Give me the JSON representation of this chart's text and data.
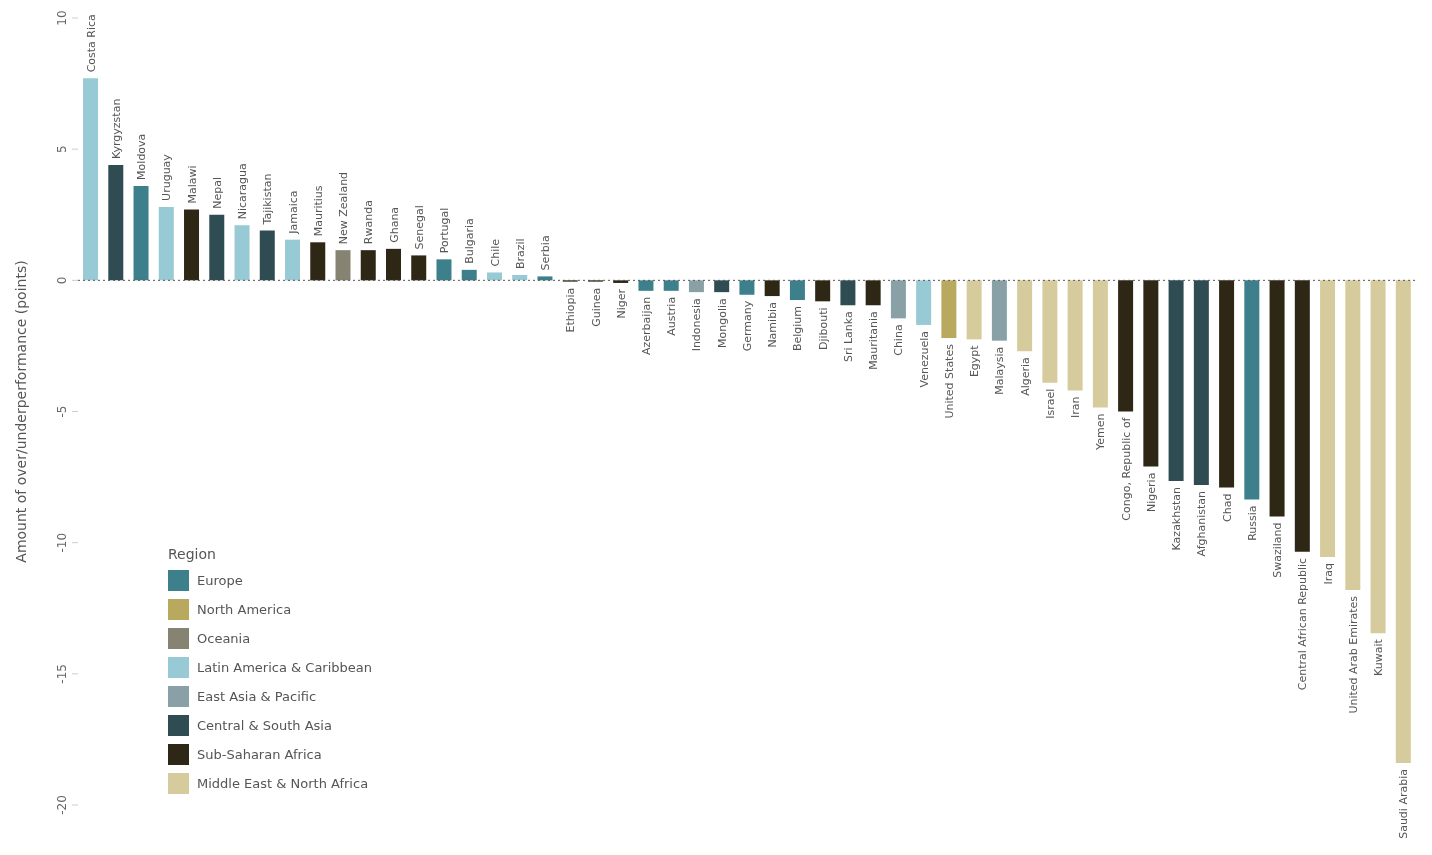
{
  "chart_data": {
    "type": "bar",
    "ylabel": "Amount of over/underperformance (points)",
    "legend_title": "Region",
    "categories": [
      "Costa Rica",
      "Kyrgyzstan",
      "Moldova",
      "Uruguay",
      "Malawi",
      "Nepal",
      "Nicaragua",
      "Tajikistan",
      "Jamaica",
      "Mauritius",
      "New Zealand",
      "Rwanda",
      "Ghana",
      "Senegal",
      "Portugal",
      "Bulgaria",
      "Chile",
      "Brazil",
      "Serbia",
      "Ethiopia",
      "Guinea",
      "Niger",
      "Azerbaijan",
      "Austria",
      "Indonesia",
      "Mongolia",
      "Germany",
      "Namibia",
      "Belgium",
      "Djibouti",
      "Sri Lanka",
      "Mauritania",
      "China",
      "Venezuela",
      "United States",
      "Egypt",
      "Malaysia",
      "Algeria",
      "Israel",
      "Iran",
      "Yemen",
      "Congo, Republic of",
      "Nigeria",
      "Kazakhstan",
      "Afghanistan",
      "Chad",
      "Russia",
      "Swaziland",
      "Central African Republic",
      "Iraq",
      "United Arab Emirates",
      "Kuwait",
      "Saudi Arabia"
    ],
    "stacked": true,
    "series": [
      {
        "name": "Europe",
        "color": "#3d7f8a",
        "values": [
          null,
          null,
          3.6,
          null,
          null,
          null,
          null,
          null,
          null,
          null,
          null,
          null,
          null,
          null,
          0.8,
          0.4,
          null,
          null,
          0.15,
          null,
          null,
          null,
          -0.4,
          -0.4,
          null,
          null,
          -0.55,
          null,
          -0.75,
          null,
          null,
          null,
          null,
          null,
          null,
          null,
          null,
          null,
          null,
          null,
          null,
          null,
          null,
          null,
          null,
          null,
          -8.35,
          null,
          null,
          null,
          null,
          null,
          null
        ]
      },
      {
        "name": "North America",
        "color": "#b8a95e",
        "values": [
          null,
          null,
          null,
          null,
          null,
          null,
          null,
          null,
          null,
          null,
          null,
          null,
          null,
          null,
          null,
          null,
          null,
          null,
          null,
          null,
          null,
          null,
          null,
          null,
          null,
          null,
          null,
          null,
          null,
          null,
          null,
          null,
          null,
          null,
          -2.2,
          null,
          null,
          null,
          null,
          null,
          null,
          null,
          null,
          null,
          null,
          null,
          null,
          null,
          null,
          null,
          null,
          null,
          null
        ]
      },
      {
        "name": "Oceania",
        "color": "#878373",
        "values": [
          null,
          null,
          null,
          null,
          null,
          null,
          null,
          null,
          null,
          null,
          1.15,
          null,
          null,
          null,
          null,
          null,
          null,
          null,
          null,
          null,
          null,
          null,
          null,
          null,
          null,
          null,
          null,
          null,
          null,
          null,
          null,
          null,
          null,
          null,
          null,
          null,
          null,
          null,
          null,
          null,
          null,
          null,
          null,
          null,
          null,
          null,
          null,
          null,
          null,
          null,
          null,
          null,
          null
        ]
      },
      {
        "name": "Latin America & Caribbean",
        "color": "#97cad4",
        "values": [
          7.7,
          null,
          null,
          2.8,
          null,
          null,
          2.1,
          null,
          1.55,
          null,
          null,
          null,
          null,
          null,
          null,
          null,
          0.3,
          0.2,
          null,
          null,
          null,
          null,
          null,
          null,
          null,
          null,
          null,
          null,
          null,
          null,
          null,
          null,
          null,
          -1.7,
          null,
          null,
          null,
          null,
          null,
          null,
          null,
          null,
          null,
          null,
          null,
          null,
          null,
          null,
          null,
          null,
          null,
          null,
          null
        ]
      },
      {
        "name": "East Asia & Pacific",
        "color": "#89a1a6",
        "values": [
          null,
          null,
          null,
          null,
          null,
          null,
          null,
          null,
          null,
          null,
          null,
          null,
          null,
          null,
          null,
          null,
          null,
          null,
          null,
          null,
          null,
          null,
          null,
          null,
          -0.45,
          null,
          null,
          null,
          null,
          null,
          null,
          null,
          -1.45,
          null,
          null,
          null,
          -2.3,
          null,
          null,
          null,
          null,
          null,
          null,
          null,
          null,
          null,
          null,
          null,
          null,
          null,
          null,
          null,
          null
        ]
      },
      {
        "name": "Central & South Asia",
        "color": "#2e4c52",
        "values": [
          null,
          4.4,
          null,
          null,
          null,
          2.5,
          null,
          1.9,
          null,
          null,
          null,
          null,
          null,
          null,
          null,
          null,
          null,
          null,
          null,
          null,
          null,
          null,
          null,
          null,
          null,
          -0.45,
          null,
          null,
          null,
          null,
          -0.95,
          null,
          null,
          null,
          null,
          null,
          null,
          null,
          null,
          null,
          null,
          null,
          null,
          -7.65,
          -7.8,
          null,
          null,
          null,
          null,
          null,
          null,
          null,
          null
        ]
      },
      {
        "name": "Sub-Saharan Africa",
        "color": "#2e2716",
        "values": [
          null,
          null,
          null,
          null,
          2.7,
          null,
          null,
          null,
          null,
          1.45,
          null,
          1.15,
          1.2,
          0.95,
          null,
          null,
          null,
          null,
          null,
          -0.05,
          -0.05,
          -0.1,
          null,
          null,
          null,
          null,
          null,
          -0.6,
          null,
          -0.8,
          null,
          -0.95,
          null,
          null,
          null,
          null,
          null,
          null,
          null,
          null,
          null,
          -5.0,
          -7.1,
          null,
          null,
          -7.9,
          null,
          -9.0,
          -10.35,
          null,
          null,
          null,
          null
        ]
      },
      {
        "name": "Middle East & North Africa",
        "color": "#d6cb9c",
        "values": [
          null,
          null,
          null,
          null,
          null,
          null,
          null,
          null,
          null,
          null,
          null,
          null,
          null,
          null,
          null,
          null,
          null,
          null,
          null,
          null,
          null,
          null,
          null,
          null,
          null,
          null,
          null,
          null,
          null,
          null,
          null,
          null,
          null,
          null,
          null,
          -2.25,
          null,
          -2.7,
          -3.9,
          -4.2,
          -4.85,
          null,
          null,
          null,
          null,
          null,
          null,
          null,
          null,
          -10.55,
          -11.8,
          -13.45,
          -18.4
        ]
      }
    ],
    "ylim": [
      -20,
      10
    ],
    "yticks": [
      -20,
      -15,
      -10,
      -5,
      0,
      5,
      10
    ],
    "ref_lines": [
      {
        "axis": "y",
        "value": 0,
        "color": "#555555",
        "line_style": "dotted"
      }
    ],
    "grid": false,
    "legend": "bottom left"
  }
}
